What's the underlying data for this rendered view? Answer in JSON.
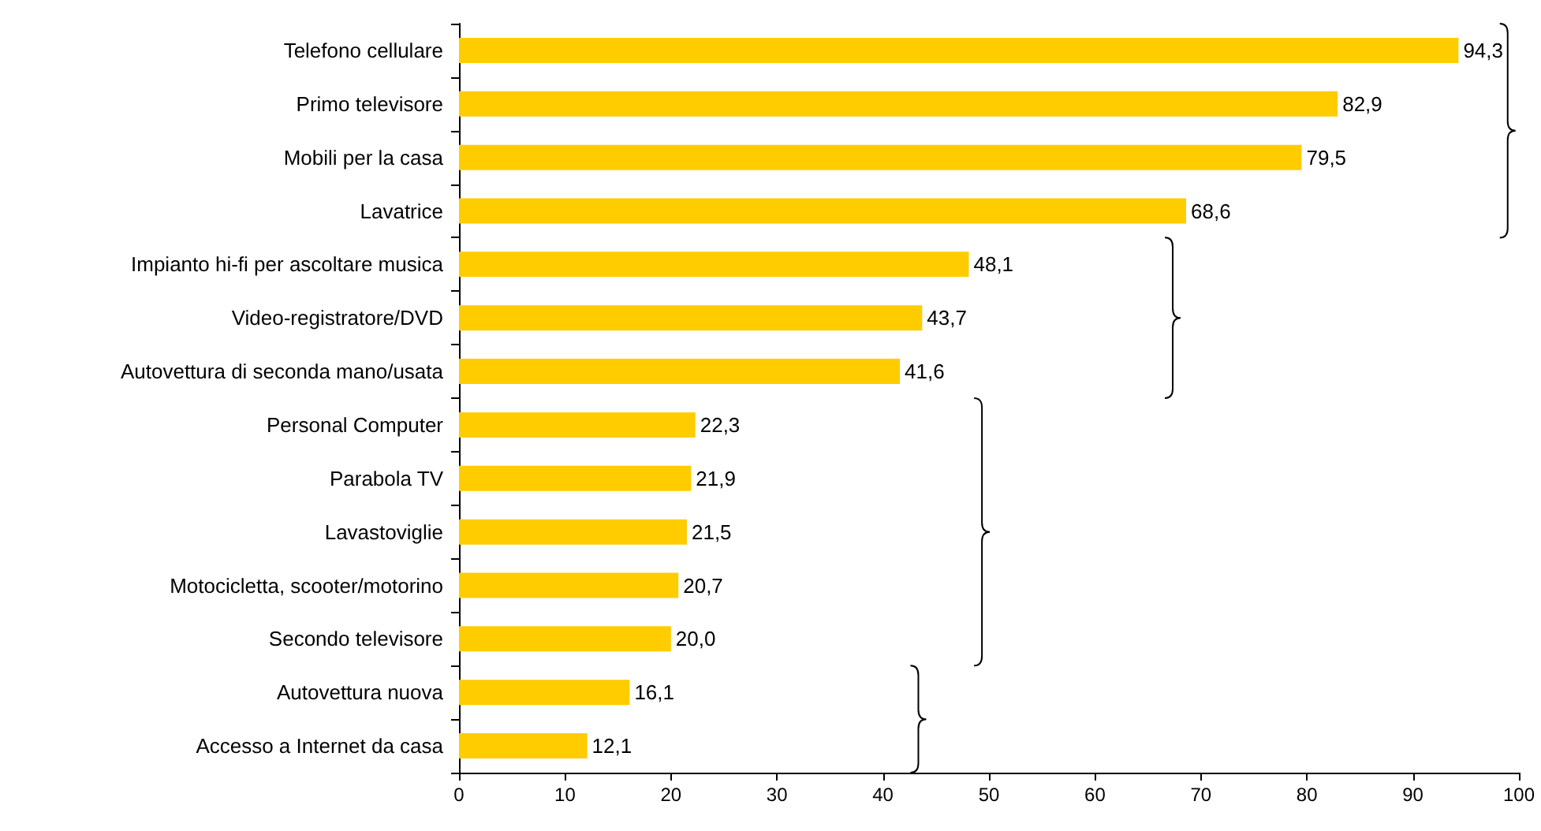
{
  "chart_data": {
    "type": "bar",
    "orientation": "horizontal",
    "categories": [
      "Telefono cellulare",
      "Primo televisore",
      "Mobili per la casa",
      "Lavatrice",
      "Impianto hi-fi per ascoltare musica",
      "Video-registratore/DVD",
      "Autovettura di seconda mano/usata",
      "Personal Computer",
      "Parabola TV",
      "Lavastoviglie",
      "Motocicletta, scooter/motorino",
      "Secondo televisore",
      "Autovettura nuova",
      "Accesso a Internet da casa"
    ],
    "values": [
      94.3,
      82.9,
      79.5,
      68.6,
      48.1,
      43.7,
      41.6,
      22.3,
      21.9,
      21.5,
      20.7,
      20.0,
      16.1,
      12.1
    ],
    "value_labels": [
      "94,3",
      "82,9",
      "79,5",
      "68,6",
      "48,1",
      "43,7",
      "41,6",
      "22,3",
      "21,9",
      "21,5",
      "20,7",
      "20,0",
      "16,1",
      "12,1"
    ],
    "color": "#ffcc00",
    "xlim": [
      0,
      100
    ],
    "xticks": [
      0,
      10,
      20,
      30,
      40,
      50,
      60,
      70,
      80,
      90,
      100
    ],
    "grid": false
  }
}
